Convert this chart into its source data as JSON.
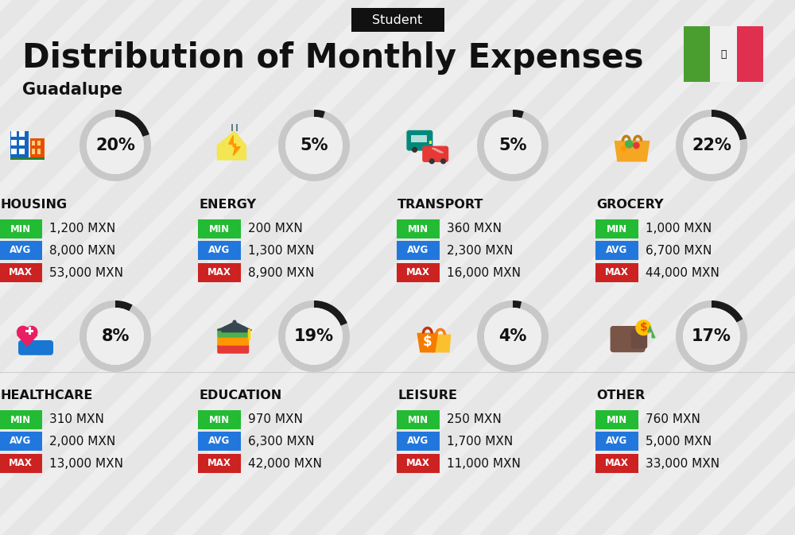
{
  "title": "Distribution of Monthly Expenses",
  "subtitle": "Student",
  "city": "Guadalupe",
  "bg_color": "#eeeeee",
  "categories": [
    {
      "name": "HOUSING",
      "percent": 20,
      "min": "1,200 MXN",
      "avg": "8,000 MXN",
      "max": "53,000 MXN"
    },
    {
      "name": "ENERGY",
      "percent": 5,
      "min": "200 MXN",
      "avg": "1,300 MXN",
      "max": "8,900 MXN"
    },
    {
      "name": "TRANSPORT",
      "percent": 5,
      "min": "360 MXN",
      "avg": "2,300 MXN",
      "max": "16,000 MXN"
    },
    {
      "name": "GROCERY",
      "percent": 22,
      "min": "1,000 MXN",
      "avg": "6,700 MXN",
      "max": "44,000 MXN"
    },
    {
      "name": "HEALTHCARE",
      "percent": 8,
      "min": "310 MXN",
      "avg": "2,000 MXN",
      "max": "13,000 MXN"
    },
    {
      "name": "EDUCATION",
      "percent": 19,
      "min": "970 MXN",
      "avg": "6,300 MXN",
      "max": "42,000 MXN"
    },
    {
      "name": "LEISURE",
      "percent": 4,
      "min": "250 MXN",
      "avg": "1,700 MXN",
      "max": "11,000 MXN"
    },
    {
      "name": "OTHER",
      "percent": 17,
      "min": "760 MXN",
      "avg": "5,000 MXN",
      "max": "33,000 MXN"
    }
  ],
  "color_min": "#22bb33",
  "color_avg": "#2277dd",
  "color_max": "#cc2222",
  "ring_dark": "#1a1a1a",
  "ring_light": "#c8c8c8",
  "text_dark": "#111111",
  "stripe_color": "#d8d8d8",
  "flag_green": "#4a9e2f",
  "flag_white": "#f0f0f0",
  "flag_red": "#e03050",
  "badge_bg": "#111111",
  "badge_text": "#ffffff",
  "cols": 4,
  "rows": 2
}
